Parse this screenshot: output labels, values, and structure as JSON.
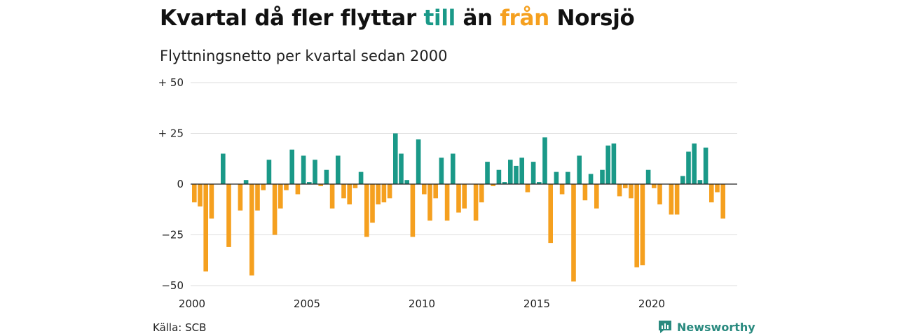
{
  "title": {
    "prefix": "Kvartal då fler flyttar",
    "word_in": "till",
    "middle": "än",
    "word_out": "från",
    "suffix": "Norsjö"
  },
  "subtitle": "Flyttningsnetto per kvartal sedan 2000",
  "source": "Källa: SCB",
  "brand": {
    "name": "Newsworthy",
    "icon": "newsworthy-logo-icon"
  },
  "colors": {
    "positive": "#1a9988",
    "negative": "#f5a01f",
    "title_in": "#1a9988",
    "title_out": "#f5a01f"
  },
  "chart_data": {
    "type": "bar",
    "ylim": [
      -50,
      50
    ],
    "yticks": [
      50,
      25,
      0,
      -25,
      -50
    ],
    "ytick_labels": [
      "+ 50",
      "+ 25",
      "0",
      "−25",
      "−50"
    ],
    "xticks": [
      2000,
      2005,
      2010,
      2015,
      2020
    ],
    "xtick_labels": [
      "2000",
      "2005",
      "2010",
      "2015",
      "2020"
    ],
    "grid": true,
    "series": [
      {
        "values": [
          -9,
          -11,
          -43,
          -17,
          0,
          15,
          -31,
          0,
          -13,
          2,
          -45,
          -13,
          -3,
          12,
          -25,
          -12,
          -3,
          17,
          -5,
          14,
          1,
          12,
          -1,
          7,
          -12,
          14,
          -7,
          -10,
          -2,
          6,
          -26,
          -19,
          -10,
          -9,
          -7,
          25,
          15,
          2,
          -26,
          22,
          -5,
          -18,
          -7,
          13,
          -18,
          15,
          -14,
          -12,
          0,
          -18,
          -9,
          11,
          -1,
          7,
          1,
          12,
          9,
          13,
          -4,
          11,
          1,
          23,
          -29,
          6,
          -5,
          6,
          -48,
          14,
          -8,
          5,
          -12,
          7,
          19,
          20,
          -6,
          -2,
          -7,
          -41,
          -40,
          7,
          -2,
          -10,
          0,
          -15,
          -15,
          4,
          16,
          20,
          2,
          18,
          -9,
          -4,
          -17
        ]
      }
    ]
  }
}
